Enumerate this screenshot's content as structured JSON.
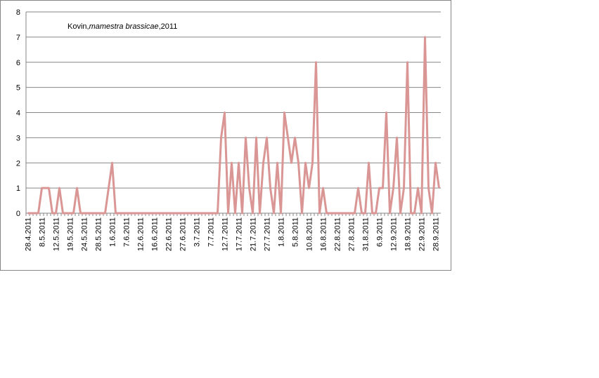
{
  "chart_data": {
    "type": "line",
    "title": {
      "prefix": "Kovin,",
      "species": "mamestra brassicae",
      "suffix": ",2011"
    },
    "categories": [
      "28.4.2011",
      null,
      null,
      null,
      "8.5.2011",
      null,
      null,
      null,
      "12.5.2011",
      null,
      null,
      null,
      "19.5.2011",
      null,
      null,
      null,
      "24.5.2011",
      null,
      null,
      null,
      "28.5.2011",
      null,
      null,
      null,
      "1.6.2011",
      null,
      null,
      null,
      "7.6.2011",
      null,
      null,
      null,
      "12.6.2011",
      null,
      null,
      null,
      "16.6.2011",
      null,
      null,
      null,
      "22.6.2011",
      null,
      null,
      null,
      "27.6.2011",
      null,
      null,
      null,
      "3.7.2011",
      null,
      null,
      null,
      "7.7.2011",
      null,
      null,
      null,
      "12.7.2011",
      null,
      null,
      null,
      "17.7.2011",
      null,
      null,
      null,
      "21.7.2011",
      null,
      null,
      null,
      "27.7.2011",
      null,
      null,
      null,
      "1.8.2011",
      null,
      null,
      null,
      "5.8.2011",
      null,
      null,
      null,
      "10.8.2011",
      null,
      null,
      null,
      "16.8.2011",
      null,
      null,
      null,
      "22.8.2011",
      null,
      null,
      null,
      "27.8.2011",
      null,
      null,
      null,
      "31.8.2011",
      null,
      null,
      null,
      "6.9.2011",
      null,
      null,
      null,
      "12.9.2011",
      null,
      null,
      null,
      "18.9.2011",
      null,
      null,
      null,
      "22.9.2011",
      null,
      null,
      null,
      "28.9.2011",
      null
    ],
    "series": [
      {
        "color": "#d99694",
        "values": [
          0,
          0,
          0,
          0,
          1,
          1,
          1,
          0,
          0,
          1,
          0,
          0,
          0,
          0,
          1,
          0,
          0,
          0,
          0,
          0,
          0,
          0,
          0,
          1,
          2,
          0,
          0,
          0,
          0,
          0,
          0,
          0,
          0,
          0,
          0,
          0,
          0,
          0,
          0,
          0,
          0,
          0,
          0,
          0,
          0,
          0,
          0,
          0,
          0,
          0,
          0,
          0,
          0,
          0,
          0,
          3,
          4,
          0,
          2,
          0,
          2,
          0,
          3,
          1,
          0,
          3,
          0,
          2,
          3,
          1,
          0,
          2,
          0,
          4,
          3,
          2,
          3,
          2,
          0,
          2,
          1,
          2,
          6,
          0,
          1,
          0,
          0,
          0,
          0,
          0,
          0,
          0,
          0,
          0,
          1,
          0,
          0,
          2,
          0,
          0,
          1,
          1,
          4,
          0,
          1,
          3,
          0,
          1,
          6,
          0,
          0,
          1,
          0,
          7,
          1,
          0,
          2,
          1
        ]
      }
    ],
    "ylim": [
      0,
      8
    ],
    "yticks": [
      0,
      1,
      2,
      3,
      4,
      5,
      6,
      7,
      8
    ],
    "grid": true
  }
}
